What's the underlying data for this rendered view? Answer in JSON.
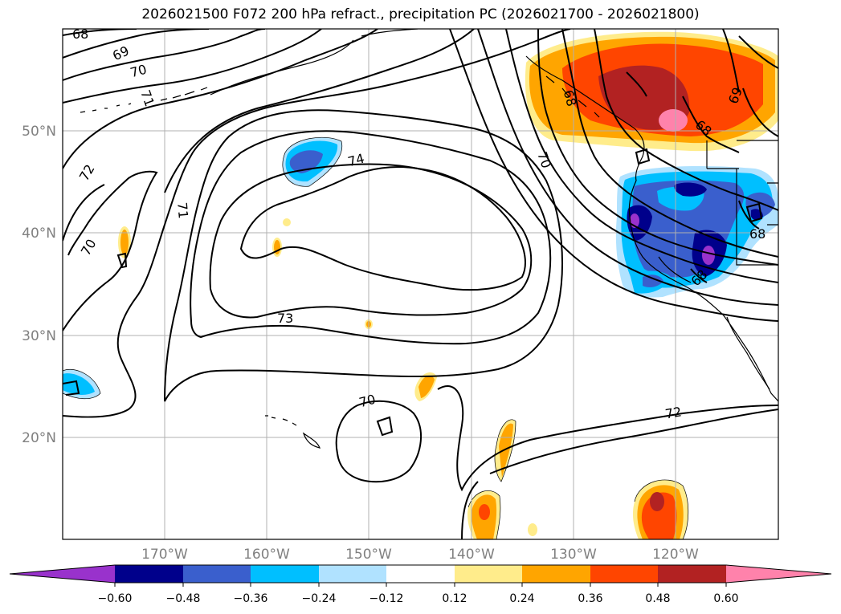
{
  "title": "2026021500 F072 200 hPa refract., precipitation PC (2026021700 - 2026021800)",
  "map": {
    "lat_labels": [
      "50°N",
      "40°N",
      "30°N",
      "20°N"
    ],
    "lon_labels": [
      "170°W",
      "160°W",
      "150°W",
      "140°W",
      "130°W",
      "120°W"
    ],
    "contour_labels": [
      "68",
      "69",
      "70",
      "71",
      "72",
      "70",
      "71",
      "74",
      "73",
      "70",
      "72",
      "68",
      "69",
      "70",
      "68",
      "68",
      "68"
    ]
  },
  "colorbar": {
    "ticks": [
      "−0.60",
      "−0.48",
      "−0.36",
      "−0.24",
      "−0.12",
      "0.12",
      "0.24",
      "0.36",
      "0.48",
      "0.60"
    ],
    "colors": [
      "#9932cc",
      "#00008b",
      "#3a5fcd",
      "#00bfff",
      "#b0e2ff",
      "#ffffff",
      "#ffec8b",
      "#ffa500",
      "#ff4500",
      "#b22222",
      "#ff82ab"
    ]
  }
}
